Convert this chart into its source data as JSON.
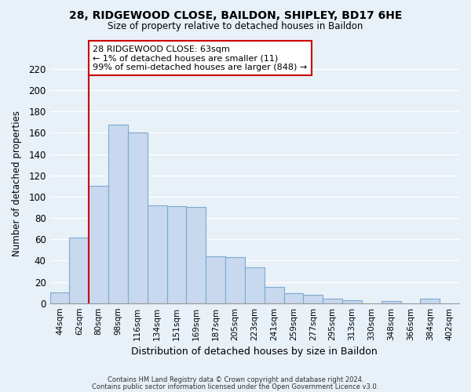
{
  "title1": "28, RIDGEWOOD CLOSE, BAILDON, SHIPLEY, BD17 6HE",
  "title2": "Size of property relative to detached houses in Baildon",
  "xlabel": "Distribution of detached houses by size in Baildon",
  "ylabel": "Number of detached properties",
  "bar_labels": [
    "44sqm",
    "62sqm",
    "80sqm",
    "98sqm",
    "116sqm",
    "134sqm",
    "151sqm",
    "169sqm",
    "187sqm",
    "205sqm",
    "223sqm",
    "241sqm",
    "259sqm",
    "277sqm",
    "295sqm",
    "313sqm",
    "330sqm",
    "348sqm",
    "366sqm",
    "384sqm",
    "402sqm"
  ],
  "bar_values": [
    10,
    62,
    110,
    168,
    160,
    92,
    91,
    90,
    44,
    43,
    34,
    15,
    9,
    8,
    4,
    3,
    0,
    2,
    0,
    4,
    0
  ],
  "bar_fill_color": "#c8d8ee",
  "bar_edge_color": "#7aaad0",
  "vline_color": "#cc0000",
  "annotation_line1": "28 RIDGEWOOD CLOSE: 63sqm",
  "annotation_line2": "← 1% of detached houses are smaller (11)",
  "annotation_line3": "99% of semi-detached houses are larger (848) →",
  "annotation_box_color": "#ffffff",
  "annotation_box_edge": "#cc0000",
  "ylim": [
    0,
    225
  ],
  "yticks": [
    0,
    20,
    40,
    60,
    80,
    100,
    120,
    140,
    160,
    180,
    200,
    220
  ],
  "footer1": "Contains HM Land Registry data © Crown copyright and database right 2024.",
  "footer2": "Contains public sector information licensed under the Open Government Licence v3.0.",
  "bg_color": "#e8f0f8",
  "plot_bg_color": "#e8f0f8",
  "grid_color": "#ffffff"
}
